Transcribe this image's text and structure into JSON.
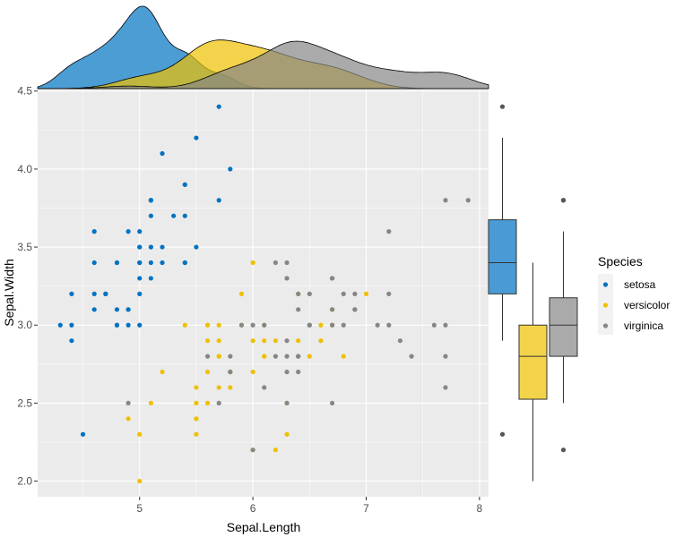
{
  "chart_data": {
    "type": "scatter",
    "xlabel": "Sepal.Length",
    "ylabel": "Sepal.Width",
    "xlim": [
      4.1,
      8.08
    ],
    "ylim": [
      1.9,
      4.51
    ],
    "xticks": [
      "5",
      "6",
      "7",
      "8"
    ],
    "yticks": [
      "2.0",
      "2.5",
      "3.0",
      "3.5",
      "4.0",
      "4.5"
    ],
    "grid": true,
    "legend": {
      "title": "Species",
      "position": "right",
      "labels": [
        "setosa",
        "versicolor",
        "virginica"
      ]
    },
    "marginals": {
      "top": "density",
      "right": "boxplot"
    },
    "series": [
      {
        "name": "setosa",
        "color": "#0073C2",
        "fill": "#4A9BD5",
        "x": [
          5.1,
          4.9,
          4.7,
          4.6,
          5.0,
          5.4,
          4.6,
          5.0,
          4.4,
          4.9,
          5.4,
          4.8,
          4.8,
          4.3,
          5.8,
          5.7,
          5.4,
          5.1,
          5.7,
          5.1,
          5.4,
          5.1,
          4.6,
          5.1,
          4.8,
          5.0,
          5.0,
          5.2,
          5.2,
          4.7,
          4.8,
          5.4,
          5.2,
          5.5,
          4.9,
          5.0,
          5.5,
          4.9,
          4.4,
          5.1,
          5.0,
          4.5,
          4.4,
          5.0,
          5.1,
          4.8,
          5.1,
          4.6,
          5.3,
          5.0
        ],
        "y": [
          3.5,
          3.0,
          3.2,
          3.1,
          3.6,
          3.9,
          3.4,
          3.4,
          2.9,
          3.1,
          3.7,
          3.4,
          3.0,
          3.0,
          4.0,
          4.4,
          3.9,
          3.5,
          3.8,
          3.8,
          3.4,
          3.7,
          3.6,
          3.3,
          3.4,
          3.0,
          3.4,
          3.5,
          3.4,
          3.2,
          3.1,
          3.4,
          4.1,
          4.2,
          3.1,
          3.2,
          3.5,
          3.6,
          3.0,
          3.4,
          3.5,
          2.3,
          3.2,
          3.5,
          3.8,
          3.0,
          3.8,
          3.2,
          3.7,
          3.3
        ],
        "box": {
          "q1": 3.2,
          "median": 3.4,
          "q3": 3.675,
          "lower": 2.9,
          "upper": 4.2,
          "outliers": [
            4.4,
            2.3
          ]
        }
      },
      {
        "name": "versicolor",
        "color": "#EFC000",
        "fill": "#F2D34A",
        "x": [
          7.0,
          6.4,
          6.9,
          5.5,
          6.5,
          5.7,
          6.3,
          4.9,
          6.6,
          5.2,
          5.0,
          5.9,
          6.0,
          6.1,
          5.6,
          6.7,
          5.6,
          5.8,
          6.2,
          5.6,
          5.9,
          6.1,
          6.3,
          6.1,
          6.4,
          6.6,
          6.8,
          6.7,
          6.0,
          5.7,
          5.5,
          5.5,
          5.8,
          6.0,
          5.4,
          6.0,
          6.7,
          6.3,
          5.6,
          5.5,
          5.5,
          6.1,
          5.8,
          5.0,
          5.6,
          5.7,
          5.7,
          6.2,
          5.1,
          5.7
        ],
        "y": [
          3.2,
          3.2,
          3.1,
          2.3,
          2.8,
          2.8,
          3.3,
          2.4,
          2.9,
          2.7,
          2.0,
          3.0,
          2.2,
          2.9,
          2.9,
          3.1,
          3.0,
          2.7,
          2.2,
          2.5,
          3.2,
          2.8,
          2.5,
          2.8,
          2.9,
          3.0,
          2.8,
          3.0,
          2.9,
          2.6,
          2.4,
          2.4,
          2.7,
          2.7,
          3.0,
          3.4,
          3.1,
          2.3,
          3.0,
          2.5,
          2.6,
          3.0,
          2.6,
          2.3,
          2.7,
          3.0,
          2.9,
          2.9,
          2.5,
          2.8
        ],
        "box": {
          "q1": 2.525,
          "median": 2.8,
          "q3": 3.0,
          "lower": 2.0,
          "upper": 3.4,
          "outliers": []
        }
      },
      {
        "name": "virginica",
        "color": "#868686",
        "fill": "#AAAAAA",
        "x": [
          6.3,
          5.8,
          7.1,
          6.3,
          6.5,
          7.6,
          4.9,
          7.3,
          6.7,
          7.2,
          6.5,
          6.4,
          6.8,
          5.7,
          5.8,
          6.4,
          6.5,
          7.7,
          7.7,
          6.0,
          6.9,
          5.6,
          7.7,
          6.3,
          6.7,
          7.2,
          6.2,
          6.1,
          6.4,
          7.2,
          7.4,
          7.9,
          6.4,
          6.3,
          6.1,
          7.7,
          6.3,
          6.4,
          6.0,
          6.9,
          6.7,
          6.9,
          5.8,
          6.8,
          6.7,
          6.7,
          6.3,
          6.5,
          6.2,
          5.9
        ],
        "y": [
          3.3,
          2.7,
          3.0,
          2.9,
          3.0,
          3.0,
          2.5,
          2.9,
          2.5,
          3.6,
          3.2,
          2.7,
          3.0,
          2.5,
          2.8,
          3.2,
          3.0,
          3.8,
          2.6,
          2.2,
          3.2,
          2.8,
          2.8,
          2.7,
          3.3,
          3.2,
          2.8,
          3.0,
          2.8,
          3.0,
          2.8,
          3.8,
          2.8,
          2.8,
          2.6,
          3.0,
          3.4,
          3.1,
          3.0,
          3.1,
          3.1,
          3.1,
          2.7,
          3.2,
          3.3,
          3.0,
          2.5,
          3.0,
          3.4,
          3.0
        ],
        "box": {
          "q1": 2.8,
          "median": 3.0,
          "q3": 3.175,
          "lower": 2.5,
          "upper": 3.6,
          "outliers": [
            3.8,
            3.8,
            2.2
          ]
        }
      }
    ]
  }
}
